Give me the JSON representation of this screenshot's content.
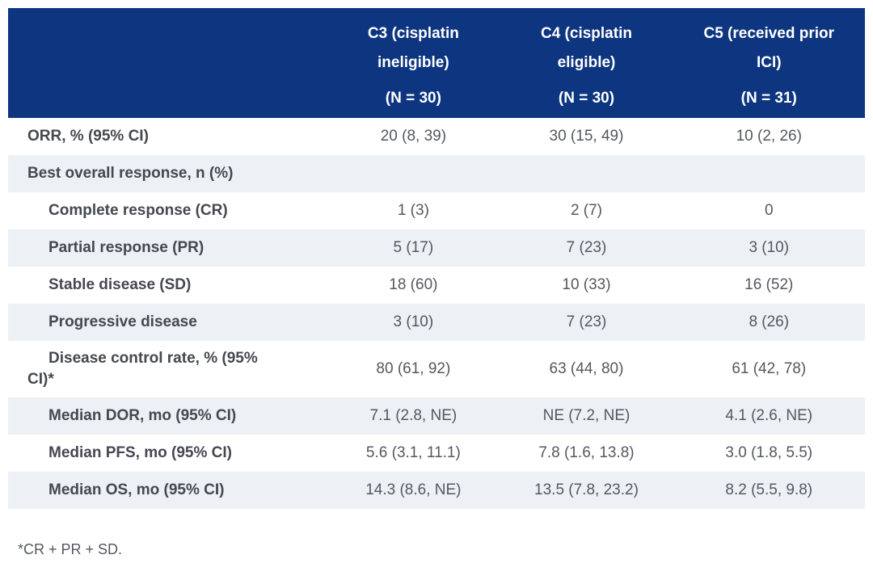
{
  "colors": {
    "header_bg": "#0D3580",
    "header_text": "#FFFFFF",
    "row_alt_bg": "#EDF0F5",
    "row_bg": "#FFFFFF",
    "label_text": "#44484F",
    "value_text": "#54585F",
    "footnote_text": "#54585F"
  },
  "table": {
    "columns": [
      {
        "title_line1": "C3 (cisplatin",
        "title_line2": "ineligible)",
        "n": "(N = 30)"
      },
      {
        "title_line1": "C4 (cisplatin",
        "title_line2": "eligible)",
        "n": "(N = 30)"
      },
      {
        "title_line1": "C5 (received prior",
        "title_line2": "ICI)",
        "n": "(N = 31)"
      }
    ],
    "rows": [
      {
        "label": "ORR, % (95% CI)",
        "values": [
          "20 (8, 39)",
          "30 (15, 49)",
          "10 (2, 26)"
        ]
      },
      {
        "label": "Best overall response, n (%)",
        "values": [
          "",
          "",
          ""
        ]
      },
      {
        "label": "Complete response (CR)",
        "values": [
          "1 (3)",
          "2 (7)",
          "0"
        ]
      },
      {
        "label": "Partial response (PR)",
        "values": [
          "5 (17)",
          "7 (23)",
          "3 (10)"
        ]
      },
      {
        "label": "Stable disease (SD)",
        "values": [
          "18 (60)",
          "10 (33)",
          "16 (52)"
        ]
      },
      {
        "label": "Progressive disease",
        "values": [
          "3 (10)",
          "7 (23)",
          "8 (26)"
        ]
      },
      {
        "label": "Disease control rate, % (95%\nCI)*",
        "values": [
          "80 (61, 92)",
          "63 (44, 80)",
          "61 (42, 78)"
        ]
      },
      {
        "label": "Median DOR, mo (95% CI)",
        "values": [
          "7.1 (2.8, NE)",
          "NE (7.2, NE)",
          "4.1 (2.6, NE)"
        ]
      },
      {
        "label": "Median PFS, mo (95% CI)",
        "values": [
          "5.6 (3.1, 11.1)",
          "7.8 (1.6, 13.8)",
          "3.0 (1.8, 5.5)"
        ]
      },
      {
        "label": "Median OS, mo (95% CI)",
        "values": [
          "14.3 (8.6, NE)",
          "13.5 (7.8, 23.2)",
          "8.2 (5.5, 9.8)"
        ]
      }
    ]
  },
  "footnote": "*CR + PR + SD."
}
